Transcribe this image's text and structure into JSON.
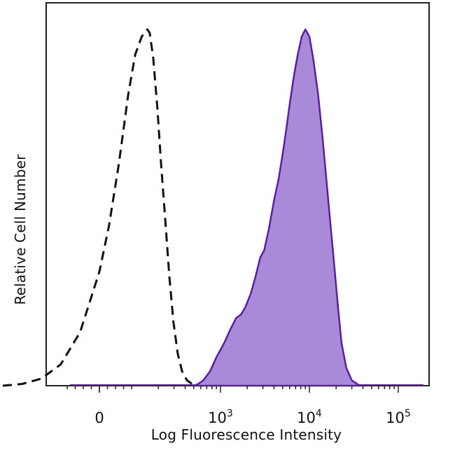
{
  "chart_data": {
    "type": "area",
    "xlabel": "Log Fluorescence Intensity",
    "ylabel": "Relative Cell Number",
    "x_scale": "biexponential",
    "x_ticks": [
      {
        "value": 0,
        "label": "0",
        "base": "0",
        "exp": ""
      },
      {
        "value": 1000,
        "label": "10^3",
        "base": "10",
        "exp": "3"
      },
      {
        "value": 10000,
        "label": "10^4",
        "base": "10",
        "exp": "4"
      },
      {
        "value": 100000,
        "label": "10^5",
        "base": "10",
        "exp": "5"
      }
    ],
    "y_ticks": [],
    "legend": "none",
    "grid": false,
    "colors": {
      "stained_fill": "#a98ad8",
      "stained_line": "#5a1f9a",
      "control_line": "#111111",
      "axis": "#222222"
    },
    "series": [
      {
        "style": "dashed outline, unfilled",
        "points": [
          [
            -300,
            0
          ],
          [
            -240,
            0.005
          ],
          [
            -180,
            0.02
          ],
          [
            -120,
            0.06
          ],
          [
            -60,
            0.15
          ],
          [
            0,
            0.32
          ],
          [
            30,
            0.45
          ],
          [
            60,
            0.62
          ],
          [
            90,
            0.82
          ],
          [
            110,
            0.93
          ],
          [
            130,
            0.98
          ],
          [
            150,
            1.0
          ],
          [
            160,
            0.99
          ],
          [
            175,
            0.92
          ],
          [
            195,
            0.78
          ],
          [
            215,
            0.62
          ],
          [
            240,
            0.46
          ],
          [
            265,
            0.31
          ],
          [
            295,
            0.18
          ],
          [
            330,
            0.09
          ],
          [
            370,
            0.04
          ],
          [
            420,
            0.015
          ],
          [
            480,
            0.005
          ],
          [
            540,
            0
          ]
        ]
      },
      {
        "style": "filled",
        "points": [
          [
            500,
            0
          ],
          [
            560,
            0.005
          ],
          [
            640,
            0.015
          ],
          [
            760,
            0.04
          ],
          [
            900,
            0.08
          ],
          [
            1100,
            0.12
          ],
          [
            1300,
            0.16
          ],
          [
            1500,
            0.19
          ],
          [
            1700,
            0.2
          ],
          [
            1900,
            0.22
          ],
          [
            2200,
            0.26
          ],
          [
            2500,
            0.31
          ],
          [
            2800,
            0.36
          ],
          [
            3100,
            0.38
          ],
          [
            3500,
            0.44
          ],
          [
            4000,
            0.52
          ],
          [
            4500,
            0.58
          ],
          [
            5000,
            0.65
          ],
          [
            5500,
            0.72
          ],
          [
            6000,
            0.79
          ],
          [
            6700,
            0.87
          ],
          [
            7400,
            0.93
          ],
          [
            8200,
            0.98
          ],
          [
            9000,
            1.0
          ],
          [
            10000,
            0.98
          ],
          [
            11000,
            0.92
          ],
          [
            12500,
            0.82
          ],
          [
            14000,
            0.7
          ],
          [
            15500,
            0.58
          ],
          [
            17000,
            0.47
          ],
          [
            19000,
            0.34
          ],
          [
            21000,
            0.22
          ],
          [
            23000,
            0.12
          ],
          [
            26000,
            0.05
          ],
          [
            30000,
            0.015
          ],
          [
            36000,
            0.002
          ],
          [
            42000,
            0
          ]
        ]
      }
    ]
  }
}
